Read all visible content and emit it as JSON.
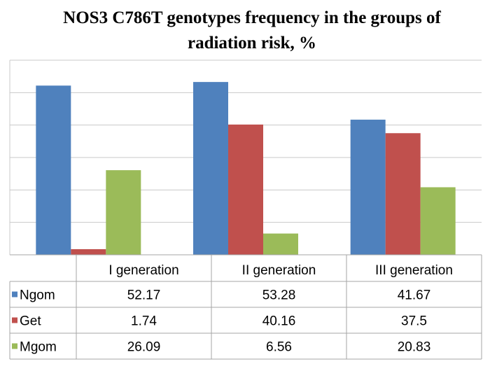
{
  "title_line1": "NOS3 C786T genotypes frequency in the groups of",
  "title_line2": "radiation risk, %",
  "chart_data": {
    "type": "bar",
    "title": "NOS3 C786T genotypes frequency in the groups of radiation risk, %",
    "categories": [
      "I generation",
      "II generation",
      "III generation"
    ],
    "series": [
      {
        "name": "Ngom",
        "values": [
          52.17,
          53.28,
          41.67
        ],
        "color": "#4f81bd"
      },
      {
        "name": "Get",
        "values": [
          1.74,
          40.16,
          37.5
        ],
        "color": "#c0504d"
      },
      {
        "name": "Mgom",
        "values": [
          26.09,
          6.56,
          20.83
        ],
        "color": "#9bbb59"
      }
    ],
    "ylim": [
      0,
      60
    ],
    "grid": true,
    "legend": "data table"
  }
}
